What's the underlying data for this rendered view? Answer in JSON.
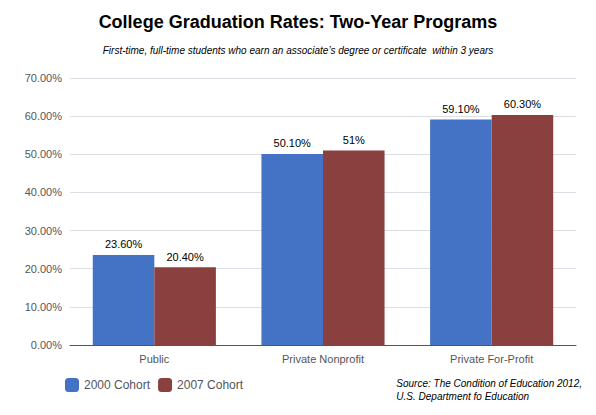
{
  "chart_data": {
    "type": "bar",
    "title": "College Graduation Rates: Two-Year Programs",
    "subtitle": "First-time, full-time students who earn an associate’s degree or certificate  within 3 years",
    "categories": [
      "Public",
      "Private Nonprofit",
      "Private For-Profit"
    ],
    "series": [
      {
        "name": "2000 Cohort",
        "color": "#4472C4",
        "values": [
          23.6,
          50.1,
          59.1
        ],
        "value_labels": [
          "23.60%",
          "50.10%",
          "59.10%"
        ]
      },
      {
        "name": "2007 Cohort",
        "color": "#8B4040",
        "values": [
          20.4,
          51.0,
          60.3
        ],
        "value_labels": [
          "20.40%",
          "51%",
          "60.30%"
        ]
      }
    ],
    "ylim": [
      0,
      70
    ],
    "yticks": [
      {
        "value": 0,
        "label": "0.00%"
      },
      {
        "value": 10,
        "label": "10.00%"
      },
      {
        "value": 20,
        "label": "20.00%"
      },
      {
        "value": 30,
        "label": "30.00%"
      },
      {
        "value": 40,
        "label": "40.00%"
      },
      {
        "value": 50,
        "label": "50.00%"
      },
      {
        "value": 60,
        "label": "60.00%"
      },
      {
        "value": 70,
        "label": "70.00%"
      }
    ],
    "grid": true,
    "data_labels": true,
    "legend": "bottom",
    "annotation": "Source: The Condition of Education 2012,\nU.S. Department fo Education"
  }
}
